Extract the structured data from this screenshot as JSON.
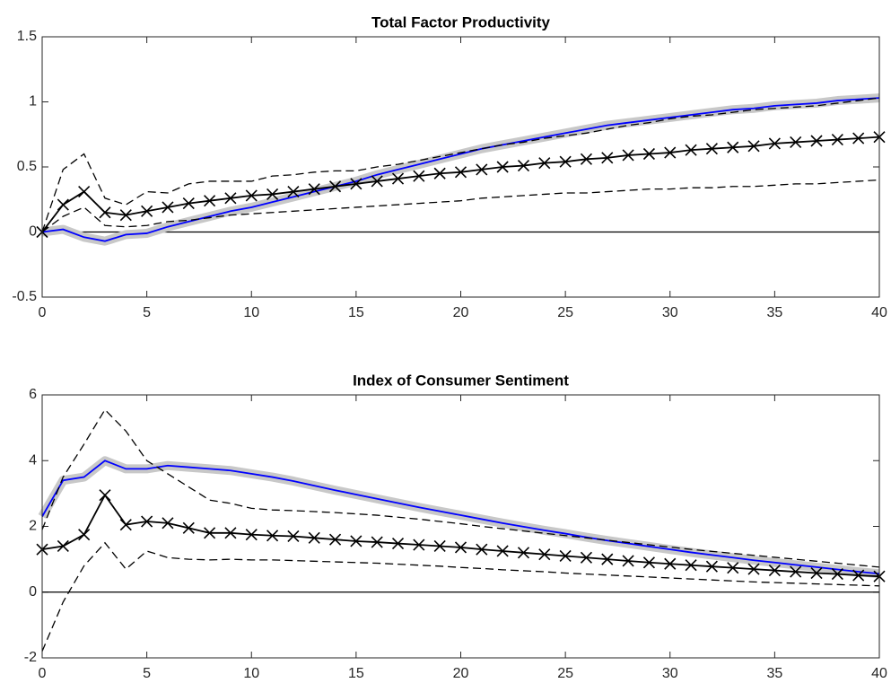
{
  "chart_data": [
    {
      "type": "line",
      "title": "Total Factor Productivity",
      "x": [
        0,
        1,
        2,
        3,
        4,
        5,
        6,
        7,
        8,
        9,
        10,
        11,
        12,
        13,
        14,
        15,
        16,
        17,
        18,
        19,
        20,
        21,
        22,
        23,
        24,
        25,
        26,
        27,
        28,
        29,
        30,
        31,
        32,
        33,
        34,
        35,
        36,
        37,
        38,
        39,
        40
      ],
      "xlim": [
        0,
        40
      ],
      "xticks": [
        0,
        5,
        10,
        15,
        20,
        25,
        30,
        35,
        40
      ],
      "ylim": [
        -0.5,
        1.5
      ],
      "yticks": [
        -0.5,
        0,
        0.5,
        1,
        1.5
      ],
      "reference_line": 0,
      "series": [
        {
          "color": "#0000ff",
          "halo": "#c8c8c8",
          "line_style": "solid",
          "marker": "none",
          "values": [
            0,
            0.02,
            -0.04,
            -0.07,
            -0.02,
            -0.01,
            0.04,
            0.08,
            0.12,
            0.16,
            0.19,
            0.23,
            0.27,
            0.31,
            0.35,
            0.39,
            0.44,
            0.48,
            0.52,
            0.56,
            0.6,
            0.64,
            0.67,
            0.7,
            0.73,
            0.76,
            0.79,
            0.82,
            0.84,
            0.86,
            0.88,
            0.9,
            0.92,
            0.94,
            0.95,
            0.97,
            0.98,
            0.99,
            1.01,
            1.02,
            1.03
          ]
        },
        {
          "color": "#000000",
          "line_style": "dashed",
          "marker": "none",
          "values": [
            0,
            0.48,
            0.6,
            0.26,
            0.21,
            0.31,
            0.3,
            0.37,
            0.39,
            0.39,
            0.39,
            0.43,
            0.44,
            0.46,
            0.47,
            0.47,
            0.5,
            0.52,
            0.55,
            0.58,
            0.61,
            0.64,
            0.67,
            0.69,
            0.72,
            0.74,
            0.76,
            0.79,
            0.82,
            0.84,
            0.87,
            0.89,
            0.9,
            0.92,
            0.94,
            0.95,
            0.96,
            0.97,
            0.99,
            1.01,
            1.03
          ]
        },
        {
          "color": "#000000",
          "line_style": "dashed",
          "marker": "none",
          "values": [
            0,
            0.12,
            0.19,
            0.05,
            0.04,
            0.05,
            0.08,
            0.09,
            0.11,
            0.13,
            0.14,
            0.15,
            0.16,
            0.17,
            0.18,
            0.19,
            0.2,
            0.21,
            0.22,
            0.23,
            0.24,
            0.26,
            0.27,
            0.28,
            0.29,
            0.3,
            0.3,
            0.31,
            0.32,
            0.33,
            0.33,
            0.34,
            0.34,
            0.35,
            0.35,
            0.36,
            0.37,
            0.37,
            0.38,
            0.39,
            0.4
          ]
        },
        {
          "color": "#000000",
          "line_style": "solid",
          "marker": "x",
          "values": [
            0,
            0.21,
            0.31,
            0.15,
            0.13,
            0.16,
            0.19,
            0.22,
            0.24,
            0.26,
            0.28,
            0.29,
            0.31,
            0.33,
            0.35,
            0.37,
            0.39,
            0.41,
            0.43,
            0.45,
            0.46,
            0.48,
            0.5,
            0.51,
            0.53,
            0.54,
            0.56,
            0.57,
            0.59,
            0.6,
            0.61,
            0.63,
            0.64,
            0.65,
            0.66,
            0.68,
            0.69,
            0.7,
            0.71,
            0.72,
            0.73
          ]
        }
      ]
    },
    {
      "type": "line",
      "title": "Index of Consumer Sentiment",
      "x": [
        0,
        1,
        2,
        3,
        4,
        5,
        6,
        7,
        8,
        9,
        10,
        11,
        12,
        13,
        14,
        15,
        16,
        17,
        18,
        19,
        20,
        21,
        22,
        23,
        24,
        25,
        26,
        27,
        28,
        29,
        30,
        31,
        32,
        33,
        34,
        35,
        36,
        37,
        38,
        39,
        40
      ],
      "xlim": [
        0,
        40
      ],
      "xticks": [
        0,
        5,
        10,
        15,
        20,
        25,
        30,
        35,
        40
      ],
      "ylim": [
        -2,
        6
      ],
      "yticks": [
        -2,
        0,
        2,
        4,
        6
      ],
      "reference_line": 0,
      "series": [
        {
          "color": "#0000ff",
          "halo": "#c8c8c8",
          "line_style": "solid",
          "marker": "none",
          "values": [
            2.3,
            3.4,
            3.5,
            4.0,
            3.75,
            3.75,
            3.85,
            3.8,
            3.75,
            3.7,
            3.6,
            3.5,
            3.38,
            3.24,
            3.1,
            2.97,
            2.84,
            2.71,
            2.58,
            2.46,
            2.34,
            2.22,
            2.1,
            1.99,
            1.88,
            1.78,
            1.67,
            1.57,
            1.48,
            1.39,
            1.3,
            1.21,
            1.13,
            1.05,
            0.97,
            0.9,
            0.83,
            0.76,
            0.69,
            0.62,
            0.56
          ]
        },
        {
          "color": "#000000",
          "line_style": "dashed",
          "marker": "none",
          "values": [
            1.9,
            3.5,
            4.5,
            5.55,
            4.9,
            4.0,
            3.6,
            3.2,
            2.8,
            2.7,
            2.55,
            2.5,
            2.48,
            2.45,
            2.42,
            2.38,
            2.34,
            2.28,
            2.22,
            2.15,
            2.08,
            2.0,
            1.93,
            1.86,
            1.79,
            1.72,
            1.65,
            1.58,
            1.51,
            1.44,
            1.37,
            1.3,
            1.24,
            1.18,
            1.12,
            1.06,
            1.0,
            0.94,
            0.88,
            0.82,
            0.76
          ]
        },
        {
          "color": "#000000",
          "line_style": "dashed",
          "marker": "none",
          "values": [
            -1.8,
            -0.3,
            0.8,
            1.5,
            0.7,
            1.25,
            1.05,
            1.0,
            0.98,
            1.0,
            0.98,
            0.98,
            0.96,
            0.94,
            0.92,
            0.9,
            0.88,
            0.85,
            0.82,
            0.79,
            0.75,
            0.72,
            0.68,
            0.65,
            0.62,
            0.58,
            0.55,
            0.52,
            0.49,
            0.46,
            0.43,
            0.4,
            0.37,
            0.34,
            0.31,
            0.29,
            0.27,
            0.25,
            0.23,
            0.21,
            0.19
          ]
        },
        {
          "color": "#000000",
          "line_style": "solid",
          "marker": "x",
          "values": [
            1.3,
            1.4,
            1.75,
            2.95,
            2.05,
            2.15,
            2.1,
            1.95,
            1.8,
            1.8,
            1.75,
            1.72,
            1.7,
            1.65,
            1.6,
            1.55,
            1.52,
            1.48,
            1.44,
            1.4,
            1.36,
            1.3,
            1.25,
            1.2,
            1.15,
            1.1,
            1.05,
            1.0,
            0.95,
            0.9,
            0.86,
            0.82,
            0.78,
            0.74,
            0.7,
            0.66,
            0.62,
            0.58,
            0.55,
            0.51,
            0.48
          ]
        }
      ]
    }
  ]
}
